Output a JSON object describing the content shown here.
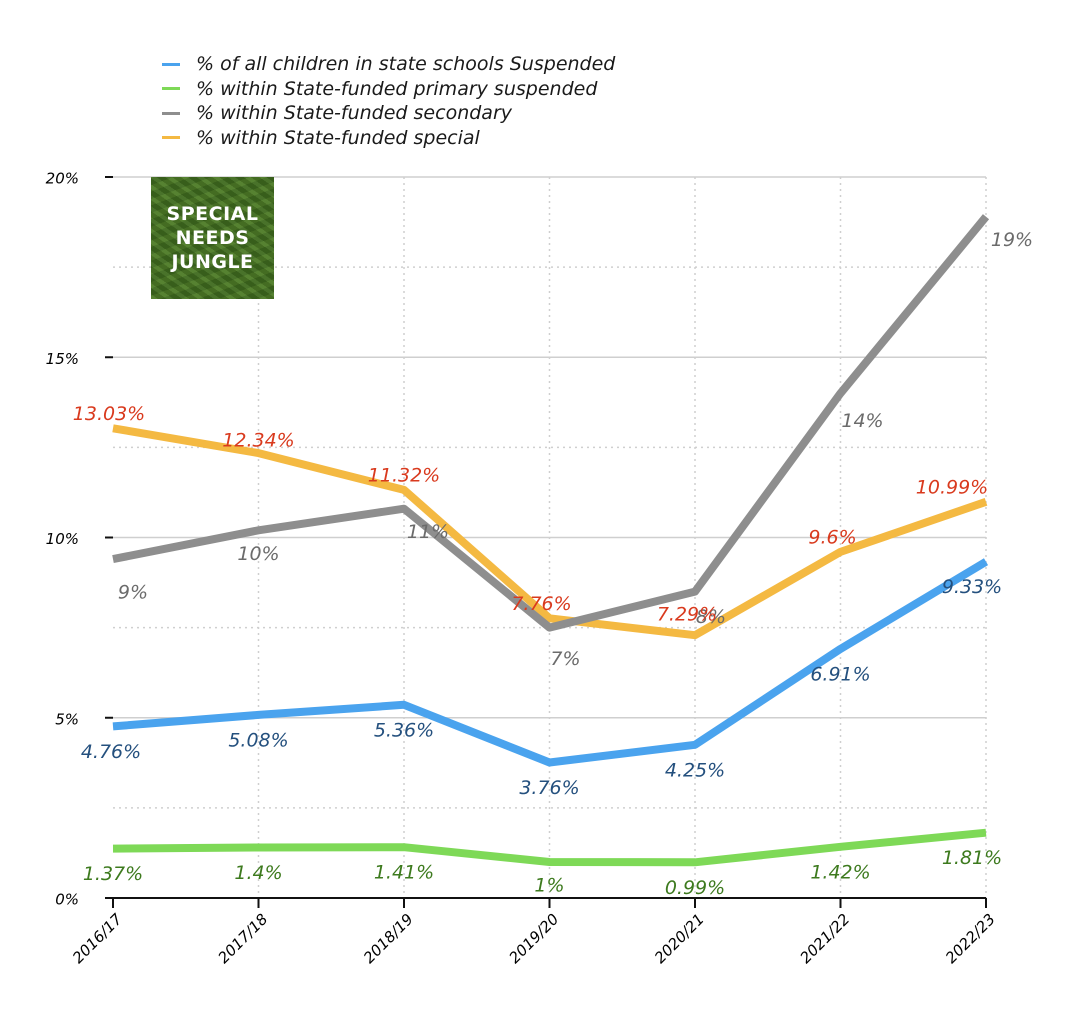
{
  "chart_data": {
    "type": "line",
    "title": "",
    "xlabel": "",
    "ylabel": "",
    "categories": [
      "2016/17",
      "2017/18",
      "2018/19",
      "2019/20",
      "2020/21",
      "2021/22",
      "2022/23"
    ],
    "ylim": [
      0,
      20
    ],
    "yticks": [
      {
        "value": 0,
        "label": "0%"
      },
      {
        "value": 5,
        "label": "5%"
      },
      {
        "value": 10,
        "label": "10%"
      },
      {
        "value": 15,
        "label": "15%"
      },
      {
        "value": 20,
        "label": "20%"
      }
    ],
    "grid": true,
    "legend_position": "top-left",
    "series": [
      {
        "name": "% of all children in state schools Suspended",
        "color": "#4aa3ee",
        "label_color": "#24507e",
        "values": [
          4.76,
          5.08,
          5.36,
          3.76,
          4.25,
          6.91,
          9.33
        ],
        "labels": [
          "4.76%",
          "5.08%",
          "5.36%",
          "3.76%",
          "4.25%",
          "6.91%",
          "9.33%"
        ]
      },
      {
        "name": "% within State-funded primary suspended",
        "color": "#7ed957",
        "label_color": "#3d7a1e",
        "values": [
          1.37,
          1.4,
          1.41,
          1.0,
          0.99,
          1.42,
          1.81
        ],
        "labels": [
          "1.37%",
          "1.4%",
          "1.41%",
          "1%",
          "0.99%",
          "1.42%",
          "1.81%"
        ]
      },
      {
        "name": "% within State-funded secondary",
        "color": "#8e8e8e",
        "label_color": "#6b6b6b",
        "values": [
          9.4,
          10.2,
          10.8,
          7.5,
          8.5,
          14.0,
          18.9
        ],
        "labels": [
          "9%",
          "10%",
          "11%",
          "7%",
          "8%",
          "14%",
          "19%"
        ]
      },
      {
        "name": "% within State-funded special",
        "color": "#f4b942",
        "label_color": "#d93a1e",
        "values": [
          13.03,
          12.34,
          11.32,
          7.76,
          7.29,
          9.6,
          10.99
        ],
        "labels": [
          "13.03%",
          "12.34%",
          "11.32%",
          "7.76%",
          "7.29%",
          "9.6%",
          "10.99%"
        ]
      }
    ]
  },
  "logo": {
    "lines": [
      "SPECIAL",
      "NEEDS",
      "JUNGLE"
    ]
  }
}
